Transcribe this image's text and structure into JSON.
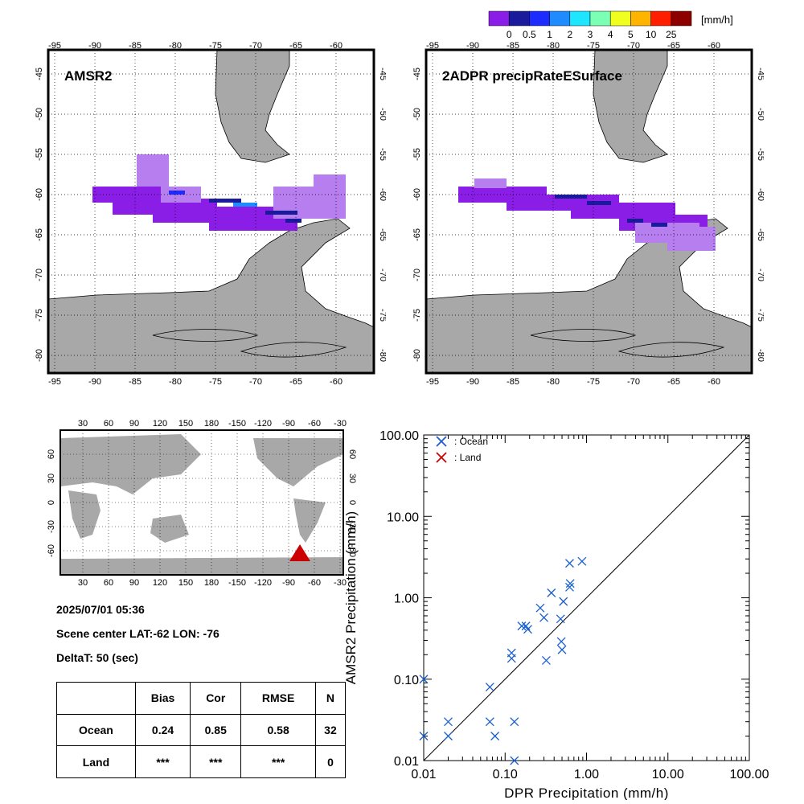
{
  "colorbar": {
    "unit": "[mm/h]",
    "labels": [
      "0",
      "0.5",
      "1",
      "2",
      "3",
      "4",
      "5",
      "10",
      "25"
    ],
    "colors": [
      "#8a1ee6",
      "#1a1a9c",
      "#1e2bff",
      "#1e8cff",
      "#1ee6ff",
      "#7affb4",
      "#f0ff1e",
      "#ffb400",
      "#ff1e00",
      "#8c0000"
    ]
  },
  "maps": {
    "left_title": "AMSR2",
    "right_title": "2ADPR precipRateESurface",
    "lon_labels": [
      "-95",
      "-90",
      "-85",
      "-80",
      "-75",
      "-70",
      "-65",
      "-60"
    ],
    "lat_labels": [
      "-45",
      "-50",
      "-55",
      "-60",
      "-65",
      "-70",
      "-75",
      "-80"
    ]
  },
  "world_map": {
    "top_labels": [
      "30",
      "60",
      "90",
      "120",
      "150",
      "180",
      "-150",
      "-120",
      "-90",
      "-60",
      "-30"
    ],
    "side_labels": [
      "60",
      "30",
      "0",
      "-30",
      "-60"
    ],
    "marker_color": "#cc0000"
  },
  "info": {
    "datetime": "2025/07/01 05:36",
    "scene_center": "Scene center LAT:-62   LON: -76",
    "delta_t": "DeltaT:   50 (sec)"
  },
  "stats_table": {
    "headers": [
      "",
      "Bias",
      "Cor",
      "RMSE",
      "N"
    ],
    "rows": [
      {
        "label": "Ocean",
        "bias": "0.24",
        "cor": "0.85",
        "rmse": "0.58",
        "n": "32"
      },
      {
        "label": "Land",
        "bias": "***",
        "cor": "***",
        "rmse": "***",
        "n": "0"
      }
    ]
  },
  "chart_data": {
    "type": "scatter",
    "xlabel": "DPR Precipitation (mm/h)",
    "ylabel": "AMSR2 Precipitation (mm/h)",
    "xscale": "log",
    "yscale": "log",
    "xlim": [
      0.01,
      100
    ],
    "ylim": [
      0.01,
      100
    ],
    "tick_labels": [
      "0.01",
      "0.10",
      "1.00",
      "10.00",
      "100.00"
    ],
    "legend": [
      {
        "label": ": Ocean",
        "color": "#1a5fd0"
      },
      {
        "label": ": Land",
        "color": "#cc0000"
      }
    ],
    "legend_position": "top-left",
    "reference_line": "1:1",
    "series": [
      {
        "name": "Ocean",
        "color": "#1a5fd0",
        "points": [
          [
            0.01,
            0.02
          ],
          [
            0.01,
            0.1
          ],
          [
            0.02,
            0.03
          ],
          [
            0.02,
            0.02
          ],
          [
            0.065,
            0.08
          ],
          [
            0.065,
            0.03
          ],
          [
            0.075,
            0.02
          ],
          [
            0.12,
            0.21
          ],
          [
            0.12,
            0.18
          ],
          [
            0.13,
            0.03
          ],
          [
            0.13,
            0.01
          ],
          [
            0.16,
            0.45
          ],
          [
            0.18,
            0.45
          ],
          [
            0.19,
            0.41
          ],
          [
            0.27,
            0.75
          ],
          [
            0.3,
            0.57
          ],
          [
            0.32,
            0.17
          ],
          [
            0.37,
            1.15
          ],
          [
            0.48,
            0.55
          ],
          [
            0.49,
            0.29
          ],
          [
            0.5,
            0.23
          ],
          [
            0.52,
            0.9
          ],
          [
            0.62,
            1.35
          ],
          [
            0.63,
            1.5
          ],
          [
            0.62,
            2.65
          ],
          [
            0.88,
            2.8
          ]
        ]
      },
      {
        "name": "Land",
        "color": "#cc0000",
        "points": []
      }
    ]
  }
}
